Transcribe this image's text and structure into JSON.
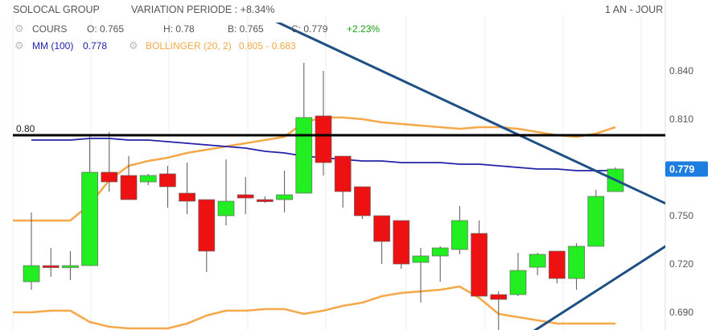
{
  "header": {
    "title": "SOLOCAL GROUP",
    "variation": "VARIATION PERIODE : +8.34%",
    "period": "1 AN - JOUR"
  },
  "info": {
    "cours_label": "COURS",
    "o": "O: 0.765",
    "h": "H: 0.78",
    "b": "B: 0.765",
    "c": "C: 0.779",
    "change": "+2.23%",
    "mm": "MM (100)",
    "mm_value": "0.778",
    "bollinger": "BOLLINGER (20, 2)",
    "bollinger_values": "0.805 - 0.683"
  },
  "colors": {
    "up": "#22ee22",
    "down": "#ee1111",
    "ma": "#2222aa",
    "bollinger": "#f5a94a",
    "trendline": "#1e4f85",
    "level": "#000000",
    "price_badge": "#1e7ee0",
    "change": "#1a9c1a",
    "gear": "#bdbdbd"
  },
  "chart_data": {
    "type": "candlestick",
    "ylim": [
      0.679,
      0.87
    ],
    "yticks": [
      "0.840",
      "0.810",
      "0.780",
      "0.750",
      "0.720",
      "0.690"
    ],
    "current_price": "0.779",
    "level_label": "0.80",
    "level_value": 0.8,
    "candles": [
      {
        "o": 0.709,
        "h": 0.752,
        "l": 0.704,
        "c": 0.719
      },
      {
        "o": 0.719,
        "h": 0.73,
        "l": 0.712,
        "c": 0.718
      },
      {
        "o": 0.719,
        "h": 0.728,
        "l": 0.71,
        "c": 0.719
      },
      {
        "o": 0.719,
        "h": 0.8,
        "l": 0.719,
        "c": 0.777
      },
      {
        "o": 0.777,
        "h": 0.802,
        "l": 0.765,
        "c": 0.771
      },
      {
        "o": 0.775,
        "h": 0.787,
        "l": 0.76,
        "c": 0.76
      },
      {
        "o": 0.771,
        "h": 0.776,
        "l": 0.769,
        "c": 0.775
      },
      {
        "o": 0.776,
        "h": 0.781,
        "l": 0.755,
        "c": 0.768
      },
      {
        "o": 0.764,
        "h": 0.783,
        "l": 0.751,
        "c": 0.759
      },
      {
        "o": 0.76,
        "h": 0.76,
        "l": 0.715,
        "c": 0.728
      },
      {
        "o": 0.75,
        "h": 0.785,
        "l": 0.744,
        "c": 0.759
      },
      {
        "o": 0.763,
        "h": 0.774,
        "l": 0.751,
        "c": 0.761
      },
      {
        "o": 0.76,
        "h": 0.762,
        "l": 0.758,
        "c": 0.759
      },
      {
        "o": 0.76,
        "h": 0.778,
        "l": 0.752,
        "c": 0.763
      },
      {
        "o": 0.764,
        "h": 0.845,
        "l": 0.764,
        "c": 0.811
      },
      {
        "o": 0.812,
        "h": 0.84,
        "l": 0.775,
        "c": 0.783
      },
      {
        "o": 0.787,
        "h": 0.787,
        "l": 0.755,
        "c": 0.765
      },
      {
        "o": 0.768,
        "h": 0.768,
        "l": 0.748,
        "c": 0.75
      },
      {
        "o": 0.75,
        "h": 0.75,
        "l": 0.72,
        "c": 0.734
      },
      {
        "o": 0.747,
        "h": 0.747,
        "l": 0.717,
        "c": 0.72
      },
      {
        "o": 0.721,
        "h": 0.73,
        "l": 0.696,
        "c": 0.725
      },
      {
        "o": 0.725,
        "h": 0.731,
        "l": 0.709,
        "c": 0.73
      },
      {
        "o": 0.729,
        "h": 0.756,
        "l": 0.726,
        "c": 0.747
      },
      {
        "o": 0.739,
        "h": 0.747,
        "l": 0.701,
        "c": 0.7
      },
      {
        "o": 0.701,
        "h": 0.703,
        "l": 0.679,
        "c": 0.698
      },
      {
        "o": 0.701,
        "h": 0.727,
        "l": 0.7,
        "c": 0.716
      },
      {
        "o": 0.718,
        "h": 0.727,
        "l": 0.713,
        "c": 0.726
      },
      {
        "o": 0.728,
        "h": 0.728,
        "l": 0.708,
        "c": 0.711
      },
      {
        "o": 0.711,
        "h": 0.733,
        "l": 0.704,
        "c": 0.731
      },
      {
        "o": 0.731,
        "h": 0.766,
        "l": 0.731,
        "c": 0.762
      },
      {
        "o": 0.765,
        "h": 0.78,
        "l": 0.765,
        "c": 0.779
      }
    ],
    "ma100": [
      0.797,
      0.797,
      0.797,
      0.798,
      0.798,
      0.797,
      0.797,
      0.796,
      0.795,
      0.794,
      0.793,
      0.792,
      0.79,
      0.789,
      0.787,
      0.786,
      0.785,
      0.784,
      0.784,
      0.783,
      0.783,
      0.783,
      0.782,
      0.782,
      0.781,
      0.78,
      0.779,
      0.779,
      0.778,
      0.778,
      0.778
    ],
    "bollinger_upper": [
      0.747,
      0.747,
      0.747,
      0.757,
      0.772,
      0.781,
      0.784,
      0.786,
      0.789,
      0.791,
      0.793,
      0.795,
      0.797,
      0.799,
      0.808,
      0.811,
      0.811,
      0.81,
      0.808,
      0.807,
      0.806,
      0.805,
      0.804,
      0.805,
      0.805,
      0.804,
      0.802,
      0.8,
      0.799,
      0.801,
      0.805
    ],
    "bollinger_lower": [
      0.69,
      0.691,
      0.691,
      0.684,
      0.681,
      0.68,
      0.68,
      0.68,
      0.683,
      0.688,
      0.691,
      0.691,
      0.692,
      0.692,
      0.689,
      0.691,
      0.694,
      0.696,
      0.7,
      0.702,
      0.703,
      0.704,
      0.706,
      0.699,
      0.689,
      0.687,
      0.685,
      0.683,
      0.683,
      0.683,
      0.683
    ]
  }
}
